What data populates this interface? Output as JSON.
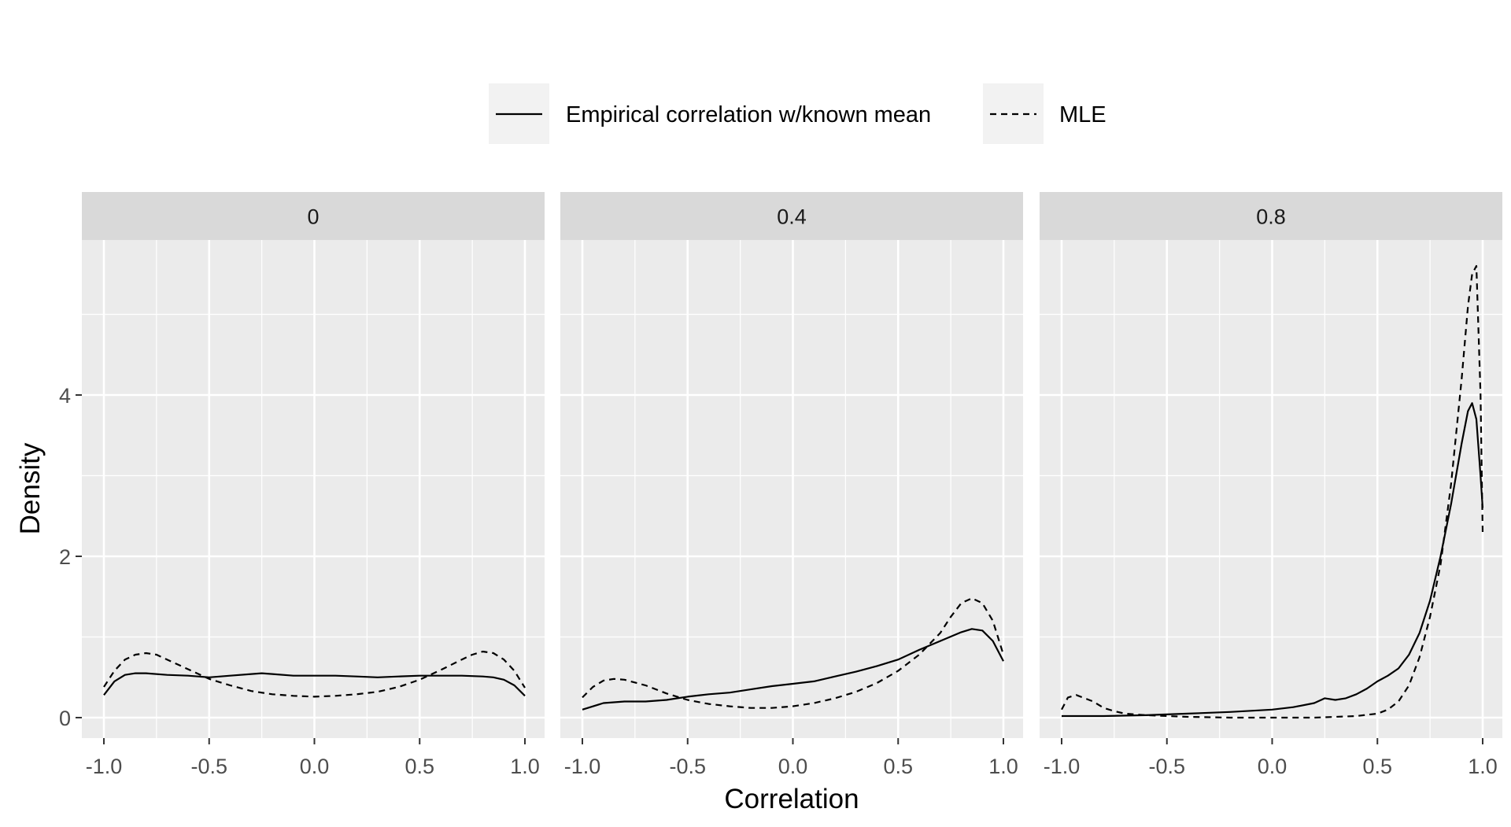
{
  "chart_data": {
    "type": "line",
    "xlabel": "Correlation",
    "ylabel": "Density",
    "xlim": [
      -1.1,
      1.1
    ],
    "ylim": [
      -0.25,
      5.9
    ],
    "x_ticks": [
      "-1.0",
      "-0.5",
      "0.0",
      "0.5",
      "1.0"
    ],
    "y_ticks": [
      "0",
      "2",
      "4"
    ],
    "grid": true,
    "legend_position": "top",
    "legend": [
      {
        "label": "Empirical correlation w/known mean",
        "linetype": "solid"
      },
      {
        "label": "MLE",
        "linetype": "dashed"
      }
    ],
    "colors": {
      "panel_bg": "#ebebeb",
      "strip_bg": "#d9d9d9",
      "grid": "#ffffff",
      "line": "#000000",
      "legend_key_bg": "#f2f2f2",
      "tick_text": "#4d4d4d"
    },
    "facets": [
      {
        "label": "0",
        "series": [
          {
            "name": "Empirical correlation w/known mean",
            "linetype": "solid",
            "x": [
              -1.0,
              -0.95,
              -0.9,
              -0.85,
              -0.8,
              -0.7,
              -0.6,
              -0.5,
              -0.4,
              -0.3,
              -0.25,
              -0.2,
              -0.1,
              0.0,
              0.1,
              0.2,
              0.3,
              0.4,
              0.5,
              0.6,
              0.7,
              0.8,
              0.85,
              0.9,
              0.95,
              1.0
            ],
            "y": [
              0.28,
              0.45,
              0.53,
              0.55,
              0.55,
              0.53,
              0.52,
              0.5,
              0.52,
              0.54,
              0.55,
              0.54,
              0.52,
              0.52,
              0.52,
              0.51,
              0.5,
              0.51,
              0.52,
              0.52,
              0.52,
              0.51,
              0.5,
              0.47,
              0.4,
              0.27
            ]
          },
          {
            "name": "MLE",
            "linetype": "dashed",
            "x": [
              -1.0,
              -0.95,
              -0.9,
              -0.85,
              -0.8,
              -0.75,
              -0.7,
              -0.6,
              -0.5,
              -0.4,
              -0.3,
              -0.2,
              -0.1,
              0.0,
              0.1,
              0.2,
              0.3,
              0.4,
              0.5,
              0.6,
              0.7,
              0.75,
              0.8,
              0.85,
              0.9,
              0.95,
              1.0
            ],
            "y": [
              0.38,
              0.58,
              0.72,
              0.78,
              0.8,
              0.78,
              0.72,
              0.6,
              0.48,
              0.4,
              0.33,
              0.29,
              0.27,
              0.26,
              0.27,
              0.29,
              0.32,
              0.38,
              0.47,
              0.59,
              0.72,
              0.78,
              0.82,
              0.8,
              0.72,
              0.58,
              0.37
            ]
          }
        ]
      },
      {
        "label": "0.4",
        "series": [
          {
            "name": "Empirical correlation w/known mean",
            "linetype": "solid",
            "x": [
              -1.0,
              -0.9,
              -0.8,
              -0.7,
              -0.6,
              -0.5,
              -0.4,
              -0.3,
              -0.2,
              -0.1,
              0.0,
              0.1,
              0.2,
              0.3,
              0.4,
              0.5,
              0.6,
              0.7,
              0.8,
              0.85,
              0.9,
              0.95,
              1.0
            ],
            "y": [
              0.1,
              0.18,
              0.2,
              0.2,
              0.22,
              0.26,
              0.29,
              0.31,
              0.35,
              0.39,
              0.42,
              0.45,
              0.51,
              0.57,
              0.64,
              0.72,
              0.84,
              0.95,
              1.06,
              1.1,
              1.08,
              0.95,
              0.7
            ]
          },
          {
            "name": "MLE",
            "linetype": "dashed",
            "x": [
              -1.0,
              -0.95,
              -0.9,
              -0.85,
              -0.8,
              -0.7,
              -0.6,
              -0.5,
              -0.4,
              -0.3,
              -0.2,
              -0.1,
              0.0,
              0.1,
              0.2,
              0.3,
              0.4,
              0.5,
              0.6,
              0.7,
              0.75,
              0.8,
              0.85,
              0.9,
              0.95,
              1.0
            ],
            "y": [
              0.25,
              0.38,
              0.46,
              0.48,
              0.47,
              0.4,
              0.3,
              0.22,
              0.17,
              0.14,
              0.12,
              0.12,
              0.14,
              0.18,
              0.24,
              0.32,
              0.43,
              0.58,
              0.78,
              1.05,
              1.25,
              1.42,
              1.48,
              1.42,
              1.2,
              0.78
            ]
          }
        ]
      },
      {
        "label": "0.8",
        "series": [
          {
            "name": "Empirical correlation w/known mean",
            "linetype": "solid",
            "x": [
              -1.0,
              -0.8,
              -0.6,
              -0.4,
              -0.2,
              0.0,
              0.1,
              0.2,
              0.25,
              0.3,
              0.35,
              0.4,
              0.45,
              0.5,
              0.55,
              0.6,
              0.65,
              0.7,
              0.75,
              0.8,
              0.85,
              0.9,
              0.93,
              0.95,
              0.97,
              0.99,
              1.0
            ],
            "y": [
              0.02,
              0.02,
              0.03,
              0.05,
              0.07,
              0.1,
              0.13,
              0.18,
              0.24,
              0.22,
              0.24,
              0.29,
              0.36,
              0.45,
              0.52,
              0.61,
              0.78,
              1.05,
              1.45,
              2.0,
              2.65,
              3.4,
              3.8,
              3.9,
              3.7,
              3.0,
              2.6
            ]
          },
          {
            "name": "MLE",
            "linetype": "dashed",
            "x": [
              -1.0,
              -0.97,
              -0.93,
              -0.9,
              -0.85,
              -0.8,
              -0.75,
              -0.7,
              -0.6,
              -0.4,
              -0.2,
              0.0,
              0.2,
              0.4,
              0.5,
              0.55,
              0.6,
              0.65,
              0.7,
              0.75,
              0.8,
              0.85,
              0.9,
              0.93,
              0.95,
              0.97,
              0.99,
              1.0
            ],
            "y": [
              0.1,
              0.25,
              0.28,
              0.25,
              0.2,
              0.12,
              0.08,
              0.05,
              0.03,
              0.01,
              0.0,
              0.0,
              0.0,
              0.02,
              0.05,
              0.1,
              0.2,
              0.4,
              0.75,
              1.25,
              1.9,
              2.9,
              4.2,
              5.1,
              5.5,
              5.6,
              4.0,
              2.3
            ]
          }
        ]
      }
    ]
  }
}
